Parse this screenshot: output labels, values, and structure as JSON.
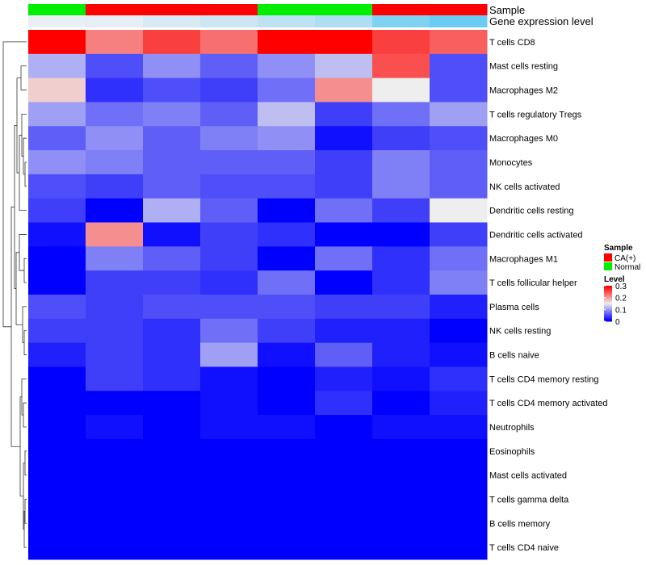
{
  "chart_data": {
    "type": "heatmap",
    "title": "",
    "annotations": {
      "sample_title": "Sample",
      "expression_title": "Gene expression level",
      "sample_groups": [
        "Normal",
        "CA(+)",
        "CA(+)",
        "CA(+)",
        "Normal",
        "Normal",
        "CA(+)",
        "CA(+)"
      ],
      "expression_values": [
        0.02,
        0.03,
        0.08,
        0.12,
        0.17,
        0.22,
        0.38,
        0.45
      ]
    },
    "rows": [
      "T cells CD8",
      "Mast cells resting",
      "Macrophages M2",
      "T cells regulatory  Tregs",
      "Macrophages M0",
      "Monocytes",
      "NK cells activated",
      "Dendritic cells resting",
      "Dendritic cells activated",
      "Macrophages M1",
      "T cells follicular helper",
      "Plasma cells",
      "NK cells resting",
      "B cells naive",
      "T cells CD4 memory resting",
      "T cells CD4 memory activated",
      "Neutrophils",
      "Eosinophils",
      "Mast cells activated",
      "T cells gamma delta",
      "B cells memory",
      "T cells CD4 naive"
    ],
    "values": [
      [
        0.3,
        0.22,
        0.26,
        0.23,
        0.3,
        0.3,
        0.26,
        0.24
      ],
      [
        0.11,
        0.05,
        0.09,
        0.06,
        0.09,
        0.12,
        0.25,
        0.05
      ],
      [
        0.17,
        0.03,
        0.05,
        0.04,
        0.07,
        0.21,
        0.15,
        0.05
      ],
      [
        0.1,
        0.07,
        0.08,
        0.06,
        0.12,
        0.04,
        0.07,
        0.1
      ],
      [
        0.06,
        0.09,
        0.06,
        0.08,
        0.09,
        0.01,
        0.04,
        0.05
      ],
      [
        0.09,
        0.08,
        0.06,
        0.06,
        0.06,
        0.04,
        0.08,
        0.06
      ],
      [
        0.05,
        0.04,
        0.06,
        0.05,
        0.05,
        0.04,
        0.08,
        0.06
      ],
      [
        0.04,
        0.0,
        0.11,
        0.06,
        0.0,
        0.07,
        0.04,
        0.15
      ],
      [
        0.01,
        0.21,
        0.01,
        0.04,
        0.03,
        0.0,
        0.0,
        0.04
      ],
      [
        0.0,
        0.08,
        0.06,
        0.04,
        0.0,
        0.07,
        0.03,
        0.07
      ],
      [
        0.0,
        0.04,
        0.04,
        0.03,
        0.07,
        0.0,
        0.03,
        0.08
      ],
      [
        0.05,
        0.04,
        0.05,
        0.05,
        0.05,
        0.04,
        0.04,
        0.02
      ],
      [
        0.04,
        0.04,
        0.03,
        0.07,
        0.04,
        0.02,
        0.02,
        0.0
      ],
      [
        0.02,
        0.04,
        0.03,
        0.1,
        0.01,
        0.06,
        0.02,
        0.01
      ],
      [
        0.0,
        0.04,
        0.03,
        0.01,
        0.0,
        0.02,
        0.01,
        0.03
      ],
      [
        0.0,
        0.0,
        0.0,
        0.01,
        0.0,
        0.03,
        0.0,
        0.02
      ],
      [
        0.0,
        0.01,
        0.0,
        0.01,
        0.01,
        0.0,
        0.01,
        0.01
      ],
      [
        0.0,
        0.0,
        0.0,
        0.0,
        0.0,
        0.0,
        0.0,
        0.0
      ],
      [
        0.0,
        0.0,
        0.0,
        0.0,
        0.0,
        0.0,
        0.0,
        0.0
      ],
      [
        0.0,
        0.0,
        0.0,
        0.0,
        0.0,
        0.0,
        0.0,
        0.0
      ],
      [
        0.0,
        0.0,
        0.0,
        0.0,
        0.0,
        0.0,
        0.0,
        0.0
      ],
      [
        0.0,
        0.0,
        0.0,
        0.0,
        0.0,
        0.0,
        0.0,
        0.0
      ]
    ],
    "color_scale": {
      "min": 0,
      "mid": 0.15,
      "max": 0.3,
      "low_color": "#0000ff",
      "mid_color": "#eeeeee",
      "high_color": "#ff0000"
    },
    "expression_scale": {
      "min": 0,
      "max": 0.5,
      "low_color": "#f0f0f5",
      "high_color": "#5bc8f0"
    },
    "legend": {
      "sample_title": "Sample",
      "sample_entries": [
        {
          "label": "CA(+)",
          "color": "#ff0000"
        },
        {
          "label": "Normal",
          "color": "#00ee00"
        }
      ],
      "level_title": "Level",
      "level_ticks": [
        "0.3",
        "0.2",
        "0.1",
        "0"
      ],
      "level_tick_values": [
        0.3,
        0.2,
        0.1,
        0
      ],
      "placement": "right"
    },
    "sample_colors": {
      "CA(+)": "#ff0000",
      "Normal": "#00ee00"
    }
  }
}
